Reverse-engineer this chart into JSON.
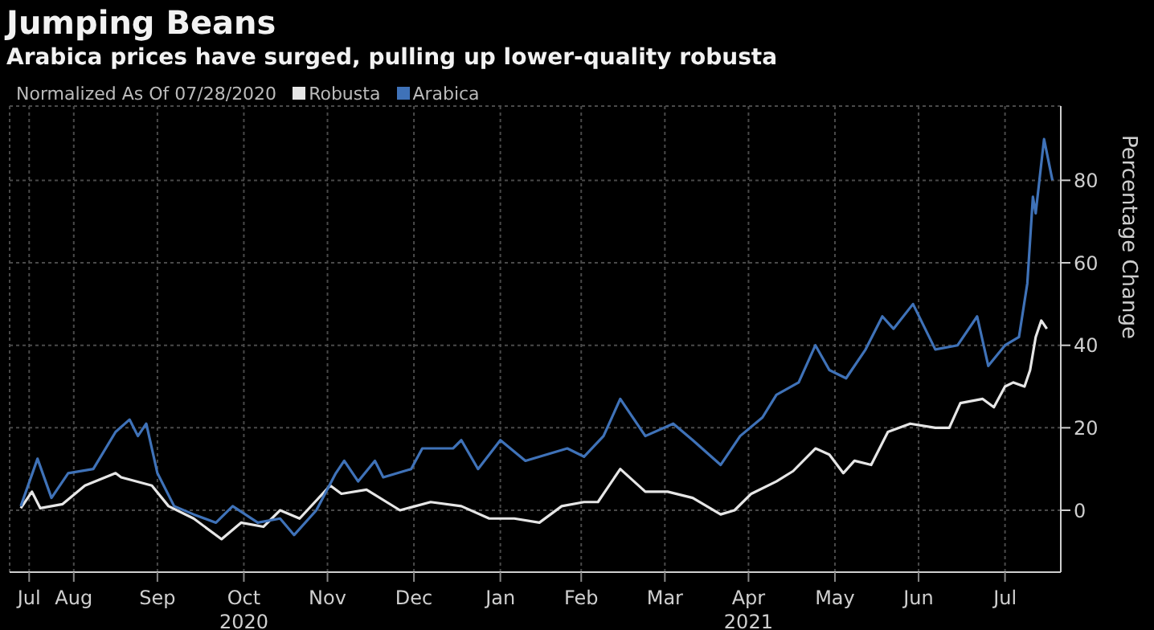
{
  "chart_data": {
    "type": "line",
    "title": "Jumping Beans",
    "subtitle": "Arabica prices have surged, pulling up lower-quality robusta",
    "legend_title": "Normalized As Of 07/28/2020",
    "ylabel": "Percentage Change",
    "series": [
      {
        "name": "Robusta",
        "color": "#e6e6e6",
        "x": [
          "2020-07-28",
          "2020-08-01",
          "2020-08-04",
          "2020-08-12",
          "2020-08-20",
          "2020-08-31",
          "2020-09-02",
          "2020-09-13",
          "2020-09-19",
          "2020-09-28",
          "2020-10-08",
          "2020-10-15",
          "2020-10-23",
          "2020-10-29",
          "2020-11-05",
          "2020-11-16",
          "2020-11-20",
          "2020-11-29",
          "2020-12-11",
          "2020-12-22",
          "2021-01-02",
          "2021-01-12",
          "2021-01-21",
          "2021-01-30",
          "2021-02-07",
          "2021-02-15",
          "2021-02-20",
          "2021-02-28",
          "2021-03-09",
          "2021-03-17",
          "2021-03-26",
          "2021-04-05",
          "2021-04-10",
          "2021-04-16",
          "2021-04-25",
          "2021-05-01",
          "2021-05-09",
          "2021-05-14",
          "2021-05-19",
          "2021-05-23",
          "2021-05-29",
          "2021-06-04",
          "2021-06-12",
          "2021-06-21",
          "2021-06-26",
          "2021-06-30",
          "2021-07-08",
          "2021-07-12",
          "2021-07-16",
          "2021-07-19",
          "2021-07-23",
          "2021-07-25",
          "2021-07-27",
          "2021-07-29",
          "2021-07-31"
        ],
        "values": [
          0.5,
          4.5,
          0.5,
          1.5,
          6,
          9,
          8,
          6,
          1,
          -2,
          -7,
          -3,
          -4,
          0,
          -2,
          6,
          4,
          5,
          0,
          2,
          1,
          -2,
          -2,
          -3,
          1,
          2,
          2,
          10,
          4.5,
          4.5,
          3,
          -1,
          0,
          4,
          7,
          9.5,
          15,
          13.5,
          9,
          12,
          11,
          19,
          21,
          20,
          20,
          26,
          27,
          25,
          30,
          31,
          30,
          34,
          42,
          46,
          44
        ]
      },
      {
        "name": "Arabica",
        "color": "#3f72b8",
        "x": [
          "2020-07-28",
          "2020-08-03",
          "2020-08-08",
          "2020-08-14",
          "2020-08-23",
          "2020-08-31",
          "2020-09-05",
          "2020-09-08",
          "2020-09-11",
          "2020-09-15",
          "2020-09-21",
          "2020-09-28",
          "2020-10-06",
          "2020-10-12",
          "2020-10-21",
          "2020-10-29",
          "2020-11-03",
          "2020-11-11",
          "2020-11-18",
          "2020-11-21",
          "2020-11-26",
          "2020-12-02",
          "2020-12-05",
          "2020-12-15",
          "2020-12-19",
          "2020-12-30",
          "2021-01-02",
          "2021-01-08",
          "2021-01-16",
          "2021-01-25",
          "2021-02-09",
          "2021-02-15",
          "2021-02-22",
          "2021-02-28",
          "2021-03-09",
          "2021-03-19",
          "2021-03-26",
          "2021-04-05",
          "2021-04-12",
          "2021-04-20",
          "2021-04-25",
          "2021-05-03",
          "2021-05-09",
          "2021-05-14",
          "2021-05-20",
          "2021-05-27",
          "2021-06-02",
          "2021-06-06",
          "2021-06-13",
          "2021-06-21",
          "2021-06-29",
          "2021-07-06",
          "2021-07-10",
          "2021-07-16",
          "2021-07-21",
          "2021-07-24",
          "2021-07-26",
          "2021-07-27",
          "2021-07-30",
          "2021-08-02"
        ],
        "values": [
          1,
          12.5,
          3,
          9,
          10,
          19,
          22,
          18,
          21,
          9,
          1,
          -1,
          -3,
          1,
          -3,
          -2,
          -6,
          0,
          9,
          12,
          7,
          12,
          8,
          10,
          15,
          15,
          17,
          10,
          17,
          12,
          15,
          13,
          18,
          27,
          18,
          21,
          17,
          11,
          18,
          22.5,
          28,
          31,
          40,
          34,
          32,
          39,
          47,
          44,
          50,
          39,
          40,
          47,
          35,
          40,
          42,
          55,
          76,
          72,
          90,
          80
        ]
      }
    ],
    "xlim": [
      "2020-07-24",
      "2021-08-05"
    ],
    "xticks": [
      {
        "value": "2020-07-31",
        "label": "Jul"
      },
      {
        "value": "2020-08-16",
        "label": "Aug"
      },
      {
        "value": "2020-09-15",
        "label": "Sep"
      },
      {
        "value": "2020-10-16",
        "label": "Oct\n2020"
      },
      {
        "value": "2020-11-15",
        "label": "Nov"
      },
      {
        "value": "2020-12-16",
        "label": "Dec"
      },
      {
        "value": "2021-01-16",
        "label": "Jan"
      },
      {
        "value": "2021-02-14",
        "label": "Feb"
      },
      {
        "value": "2021-03-16",
        "label": "Mar"
      },
      {
        "value": "2021-04-15",
        "label": "Apr\n2021"
      },
      {
        "value": "2021-05-16",
        "label": "May"
      },
      {
        "value": "2021-06-15",
        "label": "Jun"
      },
      {
        "value": "2021-07-16",
        "label": "Jul"
      }
    ],
    "ylim": [
      -15,
      98
    ],
    "yticks": [
      0,
      20,
      40,
      60,
      80
    ],
    "grid": true,
    "legend": "top left",
    "marker": "none",
    "line_style": "solid"
  }
}
